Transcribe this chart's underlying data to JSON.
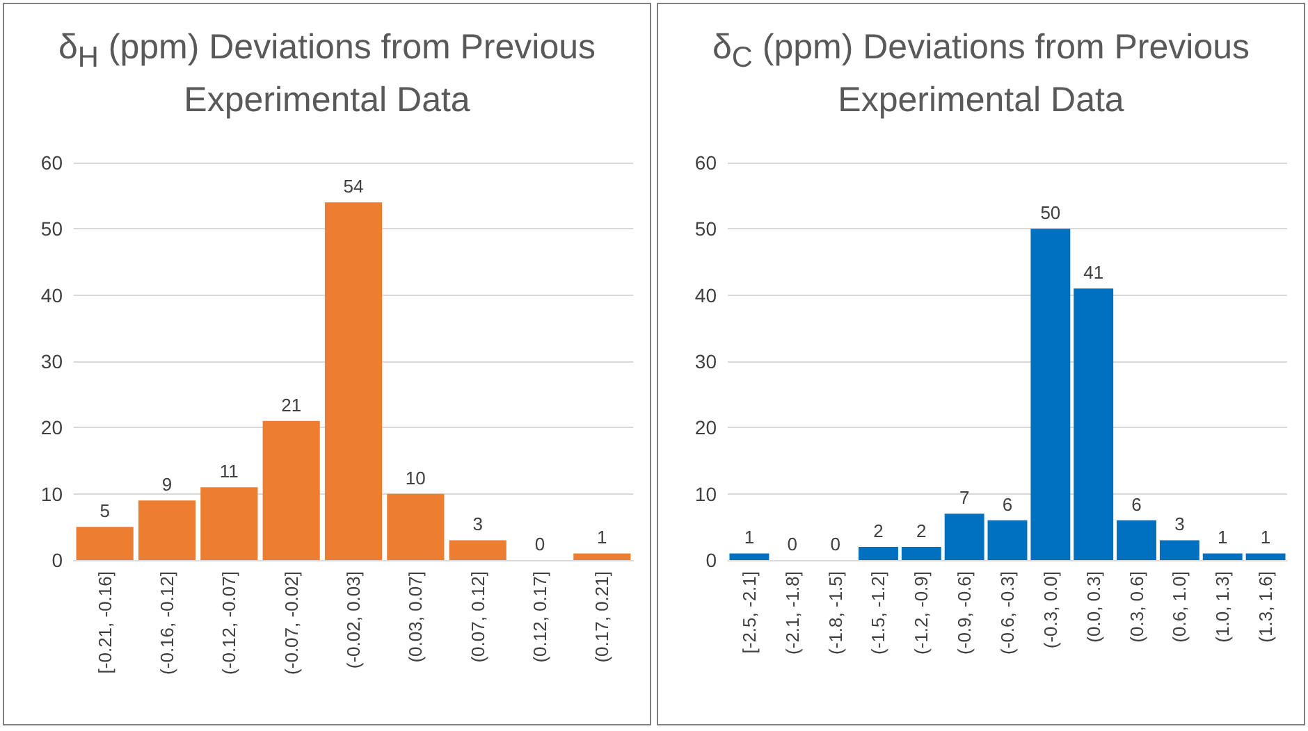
{
  "chart_data": [
    {
      "type": "bar",
      "title": "δ$_{H}$ (ppm) Deviations from Previous Experimental Data",
      "categories": [
        "[-0.21, -0.16]",
        "(-0.16, -0.12]",
        "(-0.12, -0.07]",
        "(-0.07, -0.02]",
        "(-0.02, 0.03]",
        "(0.03, 0.07]",
        "(0.07, 0.12]",
        "(0.12, 0.17]",
        "(0.17, 0.21]"
      ],
      "values": [
        5,
        9,
        11,
        21,
        54,
        10,
        3,
        0,
        1
      ],
      "color": "#ed7d31",
      "ylim": [
        0,
        60
      ],
      "yticks": [
        0,
        10,
        20,
        30,
        40,
        50,
        60
      ],
      "grid": "y",
      "data_labels": true
    },
    {
      "type": "bar",
      "title": "δ$_{C}$ (ppm) Deviations from Previous Experimental Data",
      "categories": [
        "[-2.5, -2.1]",
        "(-2.1, -1.8]",
        "(-1.8, -1.5]",
        "(-1.5, -1.2]",
        "(-1.2, -0.9]",
        "(-0.9, -0.6]",
        "(-0.6, -0.3]",
        "(-0.3, 0.0]",
        "(0.0, 0.3]",
        "(0.3, 0.6]",
        "(0.6, 1.0]",
        "(1.0, 1.3]",
        "(1.3, 1.6]"
      ],
      "values": [
        1,
        0,
        0,
        2,
        2,
        7,
        6,
        50,
        41,
        6,
        3,
        1,
        1
      ],
      "color": "#0070c0",
      "ylim": [
        0,
        60
      ],
      "yticks": [
        0,
        10,
        20,
        30,
        40,
        50,
        60
      ],
      "grid": "y",
      "data_labels": true
    }
  ]
}
